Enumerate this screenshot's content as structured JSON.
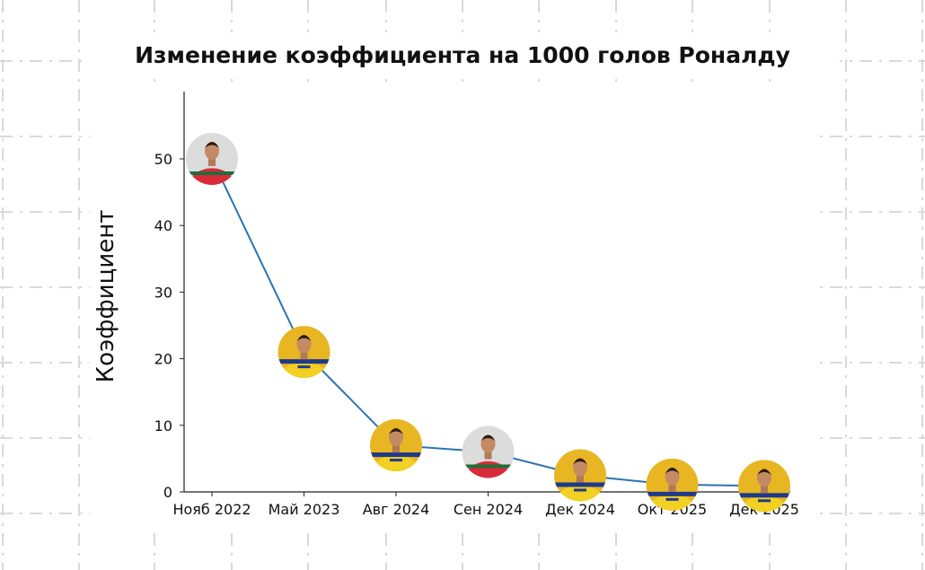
{
  "chart_data": {
    "type": "line",
    "title": "Изменение коэффициента на 1000 голов Роналду",
    "xlabel": "",
    "ylabel": "Коэффициент",
    "categories": [
      "Нояб 2022",
      "Май 2023",
      "Авг 2024",
      "Сен 2024",
      "Дек 2024",
      "Окт 2025",
      "Дек 2025"
    ],
    "series": [
      {
        "values": [
          50,
          21,
          7,
          6,
          2.5,
          1.1,
          0.9
        ],
        "color": "#2b73b0"
      }
    ],
    "markers": [
      {
        "kind": "portugal-kit-photo",
        "jersey_color": "#d92b3a",
        "background": "#dcdcdc"
      },
      {
        "kind": "al-nassr-kit-photo",
        "jersey_color": "#f2d024",
        "background": "#e8b623"
      },
      {
        "kind": "al-nassr-kit-photo",
        "jersey_color": "#f2d024",
        "background": "#e8b623"
      },
      {
        "kind": "portugal-kit-photo",
        "jersey_color": "#d92b3a",
        "background": "#dcdcdc"
      },
      {
        "kind": "al-nassr-kit-photo",
        "jersey_color": "#f2d024",
        "background": "#e8b623"
      },
      {
        "kind": "al-nassr-kit-photo",
        "jersey_color": "#f2d024",
        "background": "#e8b623"
      },
      {
        "kind": "al-nassr-kit-photo",
        "jersey_color": "#f2d024",
        "background": "#e8b623"
      }
    ],
    "yticks": [
      0,
      10,
      20,
      30,
      40,
      50
    ],
    "ylim": [
      0,
      59.5
    ],
    "grid": false,
    "legend": "none",
    "background_pattern": "dashed-grid"
  }
}
